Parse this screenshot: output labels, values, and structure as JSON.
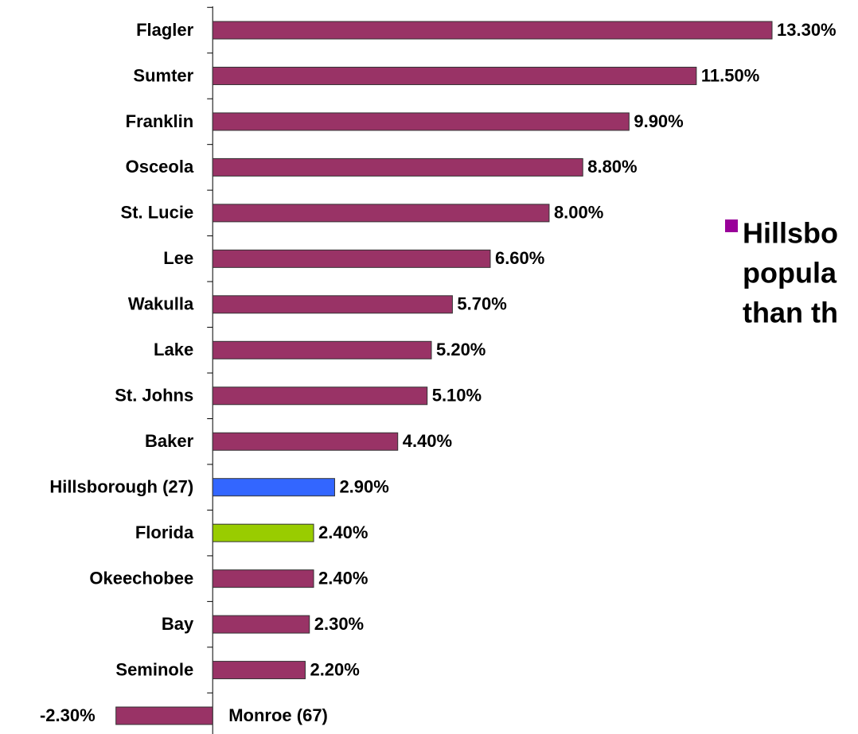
{
  "chart_data": {
    "type": "bar",
    "orientation": "horizontal",
    "categories": [
      "Flagler",
      "Sumter",
      "Franklin",
      "Osceola",
      "St. Lucie",
      "Lee",
      "Wakulla",
      "Lake",
      "St. Johns",
      "Baker",
      "Hillsborough (27)",
      "Florida",
      "Okeechobee",
      "Bay",
      "Seminole",
      "Monroe (67)"
    ],
    "values": [
      13.3,
      11.5,
      9.9,
      8.8,
      8.0,
      6.6,
      5.7,
      5.2,
      5.1,
      4.4,
      2.9,
      2.4,
      2.4,
      2.3,
      2.2,
      -2.3
    ],
    "value_labels": [
      "13.30%",
      "11.50%",
      "9.90%",
      "8.80%",
      "8.00%",
      "6.60%",
      "5.70%",
      "5.20%",
      "5.10%",
      "4.40%",
      "2.90%",
      "2.40%",
      "2.40%",
      "2.30%",
      "2.20%",
      "-2.30%"
    ],
    "colors": [
      "#993366",
      "#993366",
      "#993366",
      "#993366",
      "#993366",
      "#993366",
      "#993366",
      "#993366",
      "#993366",
      "#993366",
      "#3366ff",
      "#99cc00",
      "#993366",
      "#993366",
      "#993366",
      "#993366"
    ],
    "xlim": [
      -5,
      14
    ],
    "annotation": [
      "Hillsbo",
      "popula",
      "than th"
    ]
  }
}
